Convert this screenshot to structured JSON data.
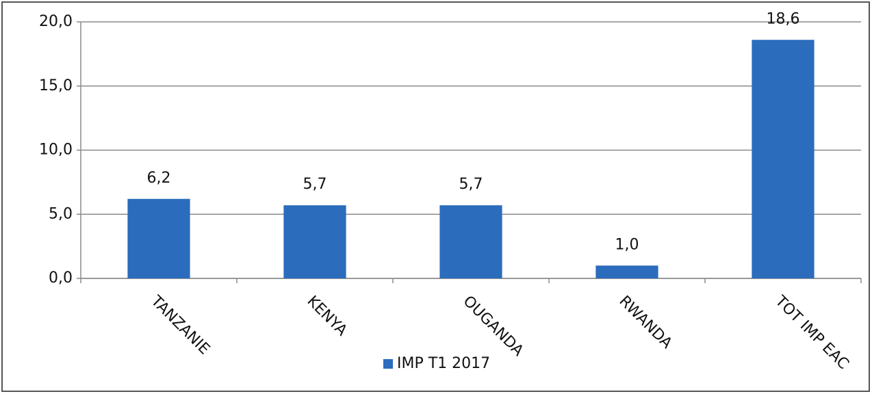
{
  "chart_data": {
    "type": "bar",
    "categories": [
      "TANZANIE",
      "KENYA",
      "OUGANDA",
      "RWANDA",
      "TOT IMP EAC"
    ],
    "series": [
      {
        "name": "IMP T1 2017",
        "color": "#2b6cbc",
        "values": [
          6.2,
          5.7,
          5.7,
          1.0,
          18.6
        ],
        "value_labels": [
          "6,2",
          "5,7",
          "5,7",
          "1,0",
          "18,6"
        ]
      }
    ],
    "ylim": [
      0,
      20
    ],
    "yticks": [
      {
        "value": 0,
        "label": "0,0"
      },
      {
        "value": 5,
        "label": "5,0"
      },
      {
        "value": 10,
        "label": "10,0"
      },
      {
        "value": 15,
        "label": "15,0"
      },
      {
        "value": 20,
        "label": "20,0"
      }
    ],
    "grid": true,
    "legend": "bottom"
  }
}
